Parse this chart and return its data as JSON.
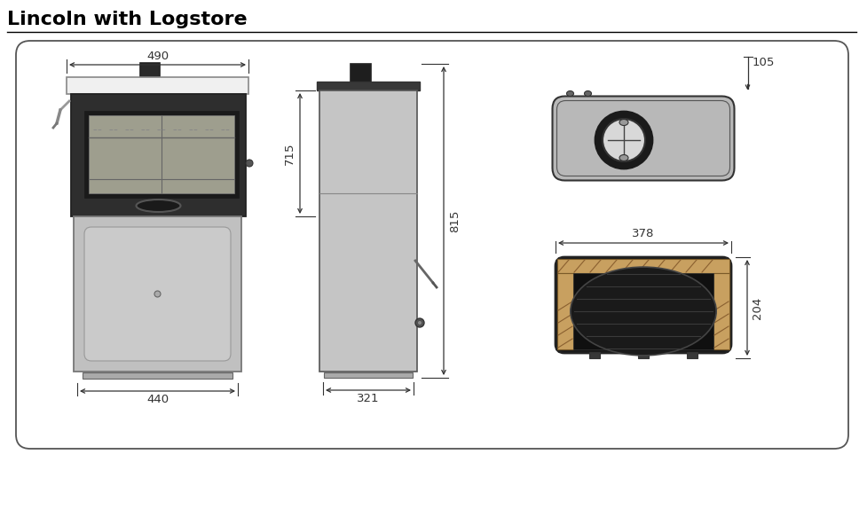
{
  "title": "Lincoln with Logstore",
  "title_fontsize": 16,
  "title_fontweight": "bold",
  "bg_color": "#ffffff",
  "border_color": "#555555",
  "dim_color": "#333333",
  "light_gray": "#c8c8c8",
  "mid_gray": "#a0a0a0",
  "dark_gray": "#606060",
  "black_body": "#282828",
  "glass_gray": "#9a9a8a",
  "logstore_gray": "#c0c0c0",
  "tan_color": "#c8a060",
  "dim_490": "490",
  "dim_440": "440",
  "dim_715": "715",
  "dim_815": "815",
  "dim_321": "321",
  "dim_105": "105",
  "dim_378": "378",
  "dim_204": "204",
  "fig_w": 9.77,
  "fig_h": 5.74,
  "dpi": 100
}
